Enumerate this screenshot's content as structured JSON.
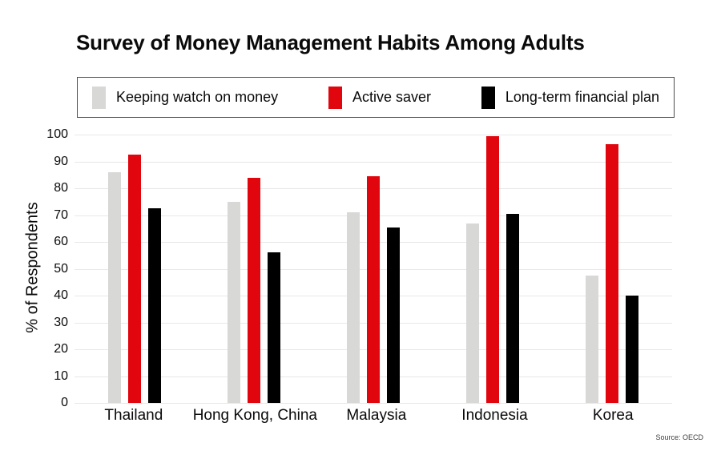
{
  "header": {
    "title": "Survey of Money Management Habits Among Adults"
  },
  "footer": {
    "source": "Source: OECD"
  },
  "chart_data": {
    "type": "bar",
    "title": "Survey of Money Management Habits Among Adults",
    "categories": [
      "Thailand",
      "Hong Kong, China",
      "Malaysia",
      "Indonesia",
      "Korea"
    ],
    "series": [
      {
        "name": "Keeping watch on money",
        "color": "#d8d8d6",
        "values": [
          86,
          75,
          71,
          67,
          47.5
        ]
      },
      {
        "name": "Active saver",
        "color": "#e1060e",
        "values": [
          92.5,
          84,
          84.5,
          99.5,
          96.5
        ]
      },
      {
        "name": "Long-term financial plan",
        "color": "#000000",
        "values": [
          72.5,
          56,
          65.5,
          70.5,
          40
        ]
      }
    ],
    "xlabel": "",
    "ylabel": "% of Respondents",
    "ylim": [
      0,
      100
    ],
    "ytick_step": 10,
    "grid": true,
    "legend_position": "top"
  },
  "colors": {
    "gridline": "#e8e8e8",
    "legend_border": "#4d4d4d",
    "text": "#0a0a0a"
  }
}
